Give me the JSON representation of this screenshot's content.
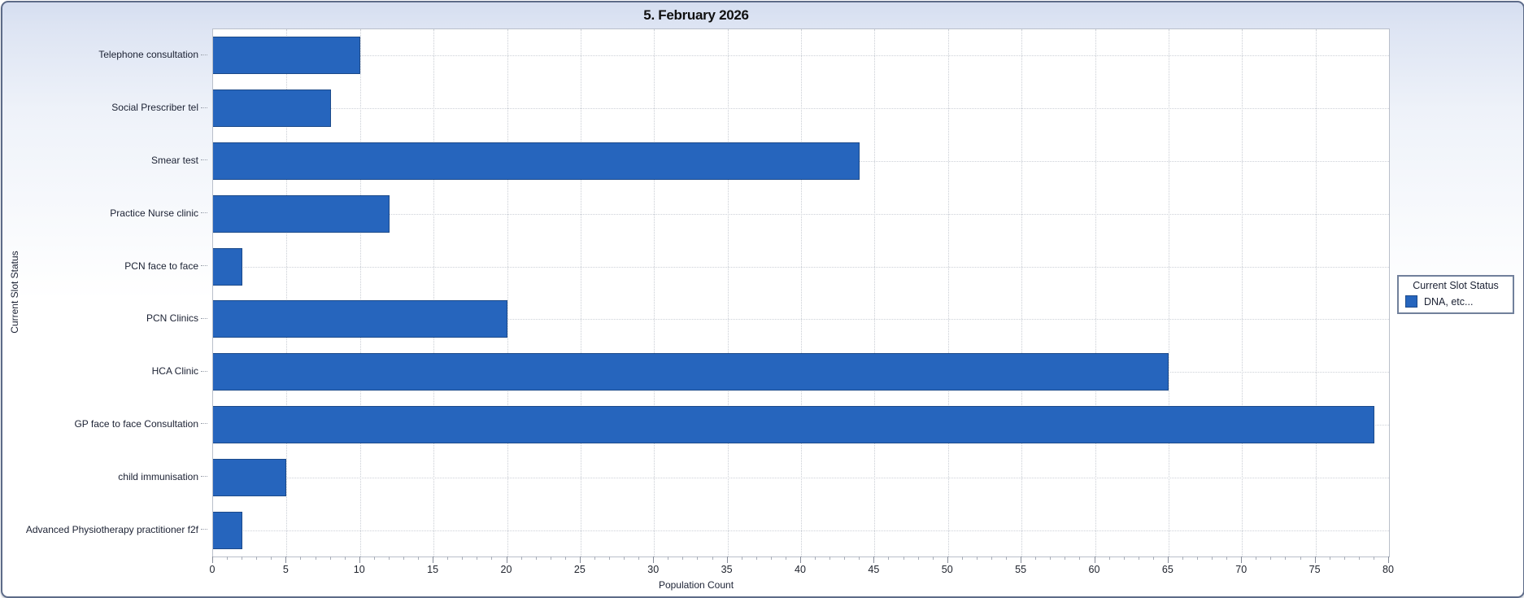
{
  "window": {
    "title": "5. February 2026"
  },
  "chart_data": {
    "type": "bar",
    "orientation": "horizontal",
    "title": "5. February 2026",
    "xlabel": "Population Count",
    "ylabel": "Current Slot Status",
    "categories": [
      "Telephone consultation",
      "Social Prescriber tel",
      "Smear test",
      "Practice Nurse clinic",
      "PCN face to face",
      "PCN Clinics",
      "HCA Clinic",
      "GP face to face Consultation",
      "child immunisation",
      "Advanced Physiotherapy practitioner f2f"
    ],
    "values": [
      10,
      8,
      44,
      12,
      2,
      20,
      65,
      79,
      5,
      2
    ],
    "xlim": [
      0,
      80
    ],
    "x_major_tick_step": 5,
    "x_minor_tick_step": 1,
    "grid": "dotted",
    "legend": {
      "title": "Current Slot Status",
      "position": "right",
      "items": [
        {
          "label": "DNA, etc...",
          "color": "#2665bd"
        }
      ]
    },
    "colors": {
      "bar_fill": "#2665bd",
      "bar_border": "#1c4a8a"
    }
  }
}
